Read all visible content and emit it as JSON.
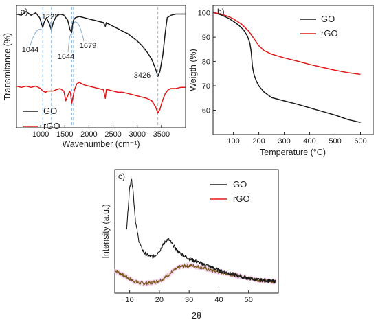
{
  "colors": {
    "go": "#1a1a1a",
    "rgo": "#e01818",
    "guide": "#8fb9e0",
    "frame": "#222222"
  },
  "chart_data": [
    {
      "panel": "a)",
      "type": "line",
      "xlabel": "Wavenumber (cm⁻¹)",
      "ylabel": "Transmitance (%)",
      "xlim": [
        500,
        4000
      ],
      "x_ticks": [
        "1000",
        "1500",
        "2000",
        "2500",
        "3000",
        "3500"
      ],
      "y_ticks_shown": false,
      "legend_position": "bottom-left",
      "annotations": [
        {
          "text": "1044",
          "x": 1044
        },
        {
          "text": "1222",
          "x": 1222
        },
        {
          "text": "1644",
          "x": 1644
        },
        {
          "text": "1679",
          "x": 1679
        },
        {
          "text": "3426",
          "x": 3426
        }
      ],
      "guide_lines_x": [
        1044,
        1222,
        1644,
        1679,
        3426
      ],
      "series": [
        {
          "name": "GO",
          "color": "#1a1a1a",
          "x": [
            500,
            600,
            700,
            800,
            900,
            980,
            1020,
            1044,
            1070,
            1120,
            1180,
            1222,
            1260,
            1320,
            1400,
            1480,
            1560,
            1610,
            1644,
            1660,
            1679,
            1720,
            1800,
            1900,
            2000,
            2100,
            2200,
            2300,
            2340,
            2360,
            2400,
            2500,
            2600,
            2700,
            2800,
            2900,
            3000,
            3100,
            3200,
            3300,
            3380,
            3426,
            3470,
            3530,
            3580,
            3620,
            3700,
            3800,
            3900,
            4000
          ],
          "y": [
            93,
            92,
            95,
            92,
            94,
            90,
            85,
            82,
            86,
            90,
            85,
            80,
            86,
            91,
            93,
            92,
            88,
            80,
            78,
            84,
            88,
            90,
            91,
            90,
            89,
            88,
            87,
            86,
            83,
            86,
            85,
            83,
            81,
            79,
            77,
            74,
            71,
            67,
            62,
            56,
            48,
            42,
            46,
            60,
            78,
            90,
            92,
            93,
            93,
            93
          ]
        },
        {
          "name": "rGO",
          "color": "#e01818",
          "x": [
            500,
            600,
            700,
            800,
            900,
            1000,
            1044,
            1100,
            1150,
            1200,
            1260,
            1320,
            1400,
            1480,
            1520,
            1560,
            1600,
            1620,
            1644,
            1700,
            1750,
            1800,
            1900,
            2000,
            2100,
            2200,
            2300,
            2340,
            2360,
            2400,
            2500,
            2600,
            2700,
            2800,
            2900,
            3000,
            3100,
            3200,
            3300,
            3380,
            3426,
            3470,
            3520,
            3580,
            3640,
            3700,
            3800,
            3900,
            4000
          ],
          "y": [
            34,
            33,
            34,
            33,
            34,
            32,
            30,
            29,
            30,
            30,
            30,
            31,
            32,
            30,
            22,
            26,
            30,
            28,
            20,
            31,
            36,
            37,
            35,
            34,
            33,
            32,
            31,
            24,
            31,
            31,
            30,
            29,
            29,
            28,
            27,
            26,
            25,
            24,
            22,
            17,
            12,
            15,
            22,
            28,
            31,
            32,
            32,
            33,
            33
          ]
        }
      ]
    },
    {
      "panel": "b)",
      "type": "line",
      "xlabel": "Temperature (°C)",
      "ylabel": "Weigth (%)",
      "xlim": [
        20,
        650
      ],
      "ylim": [
        50,
        103
      ],
      "x_ticks": [
        "100",
        "200",
        "300",
        "400",
        "500",
        "600"
      ],
      "y_ticks": [
        "60",
        "70",
        "80",
        "90",
        "100"
      ],
      "legend_position": "top-right",
      "series": [
        {
          "name": "GO",
          "color": "#1a1a1a",
          "x": [
            25,
            50,
            80,
            100,
            120,
            140,
            155,
            165,
            170,
            175,
            180,
            190,
            200,
            220,
            250,
            300,
            350,
            400,
            450,
            500,
            550,
            600
          ],
          "y": [
            100,
            99.2,
            97.8,
            96.5,
            95,
            93,
            90.5,
            87.5,
            84,
            78,
            75,
            72,
            70,
            67.5,
            65.2,
            63.8,
            62.5,
            61,
            59.5,
            58,
            56.2,
            55
          ]
        },
        {
          "name": "rGO",
          "color": "#e01818",
          "x": [
            25,
            50,
            80,
            100,
            130,
            160,
            180,
            200,
            220,
            250,
            300,
            350,
            400,
            450,
            500,
            550,
            600
          ],
          "y": [
            100,
            99.5,
            98.5,
            97.5,
            95.5,
            92.5,
            89.5,
            86.5,
            84.5,
            83,
            81.5,
            80.2,
            78.8,
            77.6,
            76.4,
            75.4,
            74.7
          ]
        }
      ]
    },
    {
      "panel": "c)",
      "type": "line",
      "xlabel": "2θ",
      "ylabel": "Intensity (a.u.)",
      "xlim": [
        5,
        60
      ],
      "x_ticks": [
        "10",
        "20",
        "30",
        "40",
        "50"
      ],
      "y_ticks_shown": false,
      "legend_position": "top-right",
      "series": [
        {
          "name": "GO",
          "color": "#1a1a1a",
          "x": [
            9,
            9.5,
            10,
            10.5,
            11,
            11.5,
            12,
            13,
            14,
            15,
            16,
            17,
            18,
            19,
            20,
            21,
            22,
            22.8,
            23.5,
            24.5,
            26,
            28,
            30,
            33,
            36,
            40,
            44,
            48,
            52,
            56,
            59
          ],
          "y": [
            55,
            75,
            92,
            100,
            94,
            78,
            62,
            47,
            39,
            35,
            33,
            32,
            32,
            34,
            37,
            41,
            45,
            47,
            46,
            42,
            37,
            33,
            30,
            27,
            24,
            20,
            17,
            14,
            12,
            11,
            10
          ]
        },
        {
          "name": "rGO",
          "color": "#e01818",
          "x": [
            5,
            7,
            9,
            11,
            13,
            15,
            17,
            19,
            21,
            23,
            25,
            27,
            29,
            31,
            33,
            35,
            37,
            39,
            41,
            43,
            45,
            47,
            49,
            51,
            53,
            55,
            57,
            59
          ],
          "y": [
            20,
            17,
            14,
            11,
            9,
            8.5,
            9,
            10,
            12,
            16,
            20,
            23,
            24,
            24,
            23,
            22,
            20,
            19,
            18,
            17,
            16,
            15,
            14,
            12.5,
            11.5,
            11,
            10.5,
            10
          ]
        }
      ]
    }
  ]
}
